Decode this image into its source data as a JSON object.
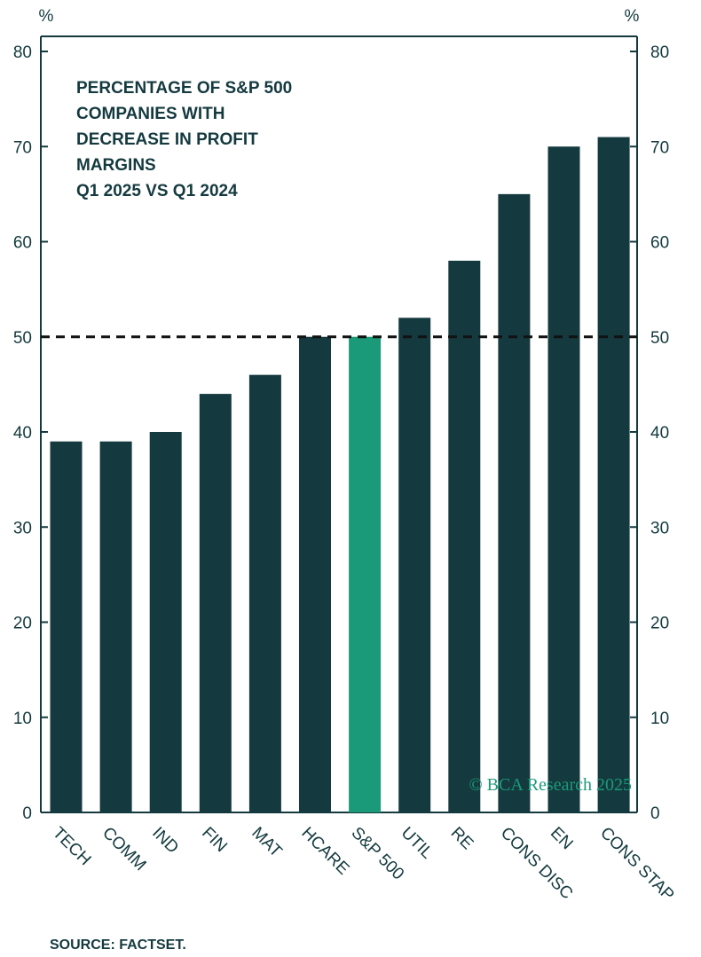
{
  "chart_data": {
    "type": "bar",
    "title_lines": [
      "PERCENTAGE OF S&P 500",
      "COMPANIES WITH",
      "DECREASE IN PROFIT",
      "MARGINS",
      "Q1 2025 VS Q1 2024"
    ],
    "unit_left": "%",
    "unit_right": "%",
    "categories": [
      "TECH",
      "COMM",
      "IND",
      "FIN",
      "MAT",
      "HCARE",
      "S&P 500",
      "UTIL",
      "RE",
      "CONS DISC",
      "EN",
      "CONS STAP"
    ],
    "values": [
      39,
      39,
      40,
      44,
      46,
      50,
      50,
      52,
      58,
      65,
      70,
      71
    ],
    "highlight_category": "S&P 500",
    "ylim": [
      0,
      80
    ],
    "yticks": [
      0,
      10,
      20,
      30,
      40,
      50,
      60,
      70,
      80
    ],
    "reference_line": 50,
    "colors": {
      "bar": "#143a3f",
      "highlight": "#1a9a78",
      "text": "#143a3f",
      "watermark": "#1a9a78"
    }
  },
  "watermark": "© BCA Research 2025",
  "source": "SOURCE: FACTSET."
}
